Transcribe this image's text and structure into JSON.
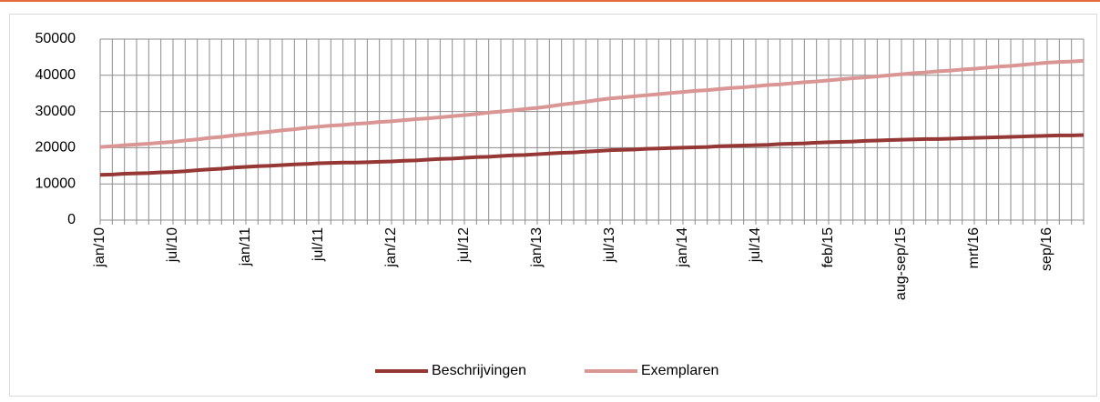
{
  "chart_data": {
    "type": "line",
    "categories": [
      "jan/10",
      null,
      null,
      null,
      null,
      null,
      "jul/10",
      null,
      null,
      null,
      null,
      null,
      "jan/11",
      null,
      null,
      null,
      null,
      null,
      "jul/11",
      null,
      null,
      null,
      null,
      null,
      "jan/12",
      null,
      null,
      null,
      null,
      null,
      "jul/12",
      null,
      null,
      null,
      null,
      null,
      "jan/13",
      null,
      null,
      null,
      null,
      null,
      "jul/13",
      null,
      null,
      null,
      null,
      null,
      "jan/14",
      null,
      null,
      null,
      null,
      null,
      "jul/14",
      null,
      null,
      null,
      null,
      null,
      "feb/15",
      null,
      null,
      null,
      null,
      null,
      "aug-sep/15",
      null,
      null,
      null,
      null,
      null,
      "mrt/16",
      null,
      null,
      null,
      null,
      null,
      "sep/16",
      null,
      null,
      null
    ],
    "series": [
      {
        "name": "Beschrijvingen",
        "color": "#953735",
        "values": [
          12500,
          12600,
          12800,
          12900,
          13000,
          13200,
          13300,
          13500,
          13800,
          14000,
          14200,
          14500,
          14700,
          14900,
          15000,
          15200,
          15400,
          15500,
          15700,
          15800,
          15900,
          15900,
          16000,
          16100,
          16200,
          16400,
          16500,
          16700,
          16900,
          17000,
          17200,
          17400,
          17500,
          17700,
          17900,
          18000,
          18200,
          18400,
          18600,
          18700,
          18900,
          19100,
          19300,
          19400,
          19500,
          19700,
          19800,
          19900,
          20000,
          20100,
          20200,
          20400,
          20500,
          20600,
          20700,
          20800,
          21000,
          21100,
          21200,
          21400,
          21500,
          21600,
          21700,
          21900,
          22000,
          22100,
          22200,
          22300,
          22400,
          22400,
          22500,
          22600,
          22700,
          22800,
          22900,
          23000,
          23100,
          23200,
          23300,
          23400,
          23400,
          23500
        ]
      },
      {
        "name": "Exemplaren",
        "color": "#d99694",
        "values": [
          20200,
          20400,
          20700,
          20900,
          21100,
          21400,
          21600,
          22000,
          22300,
          22700,
          23000,
          23400,
          23700,
          24100,
          24400,
          24800,
          25100,
          25500,
          25800,
          26100,
          26300,
          26600,
          26800,
          27100,
          27300,
          27600,
          27900,
          28100,
          28400,
          28700,
          29000,
          29300,
          29700,
          30000,
          30300,
          30700,
          31000,
          31400,
          31900,
          32300,
          32700,
          33200,
          33600,
          33900,
          34200,
          34500,
          34800,
          35100,
          35400,
          35700,
          35900,
          36200,
          36500,
          36700,
          37000,
          37300,
          37500,
          37800,
          38100,
          38300,
          38600,
          38900,
          39200,
          39400,
          39700,
          40000,
          40300,
          40600,
          40800,
          41100,
          41300,
          41600,
          41800,
          42100,
          42400,
          42600,
          42900,
          43200,
          43500,
          43700,
          43800,
          44000
        ]
      }
    ],
    "ylim": [
      0,
      50000
    ],
    "yticks": [
      0,
      10000,
      20000,
      30000,
      40000,
      50000
    ],
    "grid": true,
    "legend": "bottom"
  }
}
